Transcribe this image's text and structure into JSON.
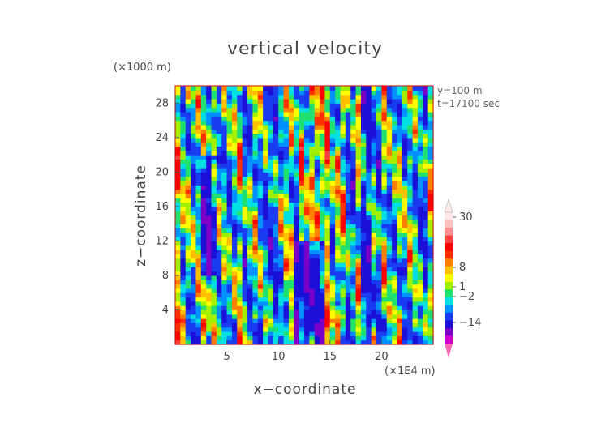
{
  "colors": {
    "palette": [
      "#ff69b4",
      "#cc00cc",
      "#7a00c8",
      "#1a10d8",
      "#1a3cf0",
      "#0090ff",
      "#00e0e0",
      "#20e070",
      "#a0f000",
      "#ffff00",
      "#ffc000",
      "#ff8000",
      "#ff3000",
      "#ff0000",
      "#ff4040",
      "#ff9090",
      "#ffc0c0",
      "#ffe8e8"
    ],
    "axis": "#555555",
    "frame": "#cc0000"
  },
  "chart_data": {
    "type": "heatmap",
    "title": "vertical velocity",
    "xlabel": "x−coordinate",
    "ylabel": "z−coordinate",
    "x_unit": "(×1E4 m)",
    "y_unit": "(×1000 m)",
    "info": [
      "y=100 m",
      "t=17100 sec"
    ],
    "xlim": [
      0,
      25
    ],
    "ylim": [
      0,
      30
    ],
    "x_ticks": [
      5,
      10,
      15,
      20
    ],
    "x_tick_labels": [
      "5",
      "10",
      "15",
      "20"
    ],
    "y_ticks": [
      4,
      8,
      12,
      16,
      20,
      24,
      28
    ],
    "y_tick_labels": [
      "4",
      "8",
      "12",
      "16",
      "20",
      "24",
      "28"
    ],
    "colorbar": {
      "levels": [
        -20,
        -14,
        -8,
        -4,
        -2,
        -1,
        0,
        1,
        2,
        3,
        4,
        5,
        6,
        8,
        12,
        20,
        30,
        40
      ],
      "labels": [
        {
          "value": 30,
          "text": "30"
        },
        {
          "value": 8,
          "text": "8"
        },
        {
          "value": 1,
          "text": "1"
        },
        {
          "value": -2,
          "text": "−2"
        },
        {
          "value": -14,
          "text": "−14"
        }
      ]
    },
    "field": {
      "nx": 50,
      "nz": 60,
      "description_values": "field values computed from column structure; strong downdrafts near x=12-14, updrafts near x=2,9,18"
    }
  }
}
